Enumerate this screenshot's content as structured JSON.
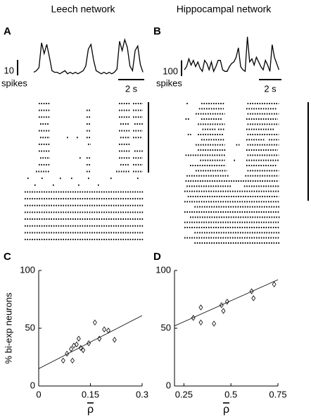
{
  "chart_data": [
    {
      "type": "line",
      "title": "Leech network",
      "panel": "A",
      "x": [
        0,
        0.2,
        0.4,
        0.6,
        0.8,
        1.0,
        1.2,
        1.4,
        1.6,
        1.8,
        2.0,
        2.2,
        2.4,
        2.6,
        2.8,
        3.0,
        3.2,
        3.4,
        3.6,
        3.8,
        4.0,
        4.2,
        4.4,
        4.6,
        4.8,
        5.0,
        5.2,
        5.4,
        5.6,
        5.8,
        6.0,
        6.2,
        6.4,
        6.6,
        6.8,
        7.0,
        7.2,
        7.4,
        7.6,
        7.8,
        8.0,
        8.2,
        8.4
      ],
      "values": [
        2,
        3,
        5,
        21,
        14,
        20,
        12,
        3,
        2,
        2,
        1,
        2,
        3,
        1,
        2,
        1,
        2,
        1,
        2,
        3,
        6,
        17,
        20,
        10,
        3,
        2,
        1,
        2,
        1,
        2,
        1,
        2,
        4,
        22,
        16,
        23,
        18,
        6,
        3,
        16,
        19,
        7,
        2
      ],
      "xlim": [
        0,
        8.5
      ],
      "ylim": [
        0,
        25
      ],
      "color": "#000000",
      "scalebar": {
        "y": 10,
        "y_unit": "spikes",
        "x": {
          "value": 2,
          "label": "2 s"
        }
      }
    },
    {
      "type": "line",
      "title": "Hippocampal network",
      "panel": "B",
      "x": [
        0,
        0.2,
        0.4,
        0.6,
        0.8,
        1.0,
        1.2,
        1.4,
        1.6,
        1.8,
        2.0,
        2.2,
        2.4,
        2.6,
        2.8,
        3.0,
        3.2,
        3.4,
        3.6,
        3.8,
        4.0,
        4.2,
        4.4,
        4.6,
        4.8,
        5.0,
        5.2,
        5.4,
        5.6,
        5.8,
        6.0,
        6.2,
        6.4,
        6.6,
        6.8,
        7.0,
        7.2,
        7.4,
        7.6,
        7.8,
        8.0,
        8.2,
        8.4
      ],
      "values": [
        40,
        60,
        110,
        70,
        100,
        60,
        90,
        50,
        30,
        100,
        80,
        40,
        90,
        30,
        60,
        100,
        100,
        40,
        30,
        30,
        60,
        80,
        90,
        120,
        180,
        60,
        40,
        30,
        250,
        90,
        110,
        70,
        120,
        90,
        60,
        40,
        100,
        70,
        30,
        200,
        120,
        80,
        40
      ],
      "xlim": [
        0,
        8.5
      ],
      "ylim": [
        0,
        260
      ],
      "color": "#000000",
      "scalebar": {
        "y": 100,
        "y_unit": "spikes",
        "x": {
          "value": 2,
          "label": "2 s"
        }
      }
    },
    {
      "type": "raster",
      "xlim": [
        0,
        8.5
      ],
      "color": "#000000",
      "rows": [
        [
          [
            1.0,
            1.8
          ],
          [
            6.7,
            7.5
          ],
          [
            7.7,
            8.4
          ]
        ],
        [
          [
            1.0,
            1.8
          ],
          [
            4.4,
            4.7
          ],
          [
            6.7,
            7.5
          ],
          [
            7.7,
            8.4
          ]
        ],
        [
          [
            1.0,
            1.8
          ],
          [
            4.4,
            4.7
          ],
          [
            6.7,
            7.5
          ],
          [
            7.7,
            8.4
          ]
        ],
        [
          [
            1.1,
            1.7
          ],
          [
            4.4,
            4.7
          ],
          [
            6.8,
            7.4
          ],
          [
            7.8,
            8.4
          ]
        ],
        [
          [
            1.0,
            1.8
          ],
          [
            4.4,
            4.7
          ],
          [
            6.7,
            7.5
          ],
          [
            7.7,
            8.4
          ]
        ],
        [
          [
            1.1,
            1.8
          ],
          [
            3.0,
            3.0
          ],
          [
            3.7,
            3.7
          ],
          [
            4.4,
            4.7
          ],
          [
            6.8,
            7.5
          ],
          [
            7.7,
            8.3
          ]
        ],
        [
          [
            1.0,
            1.8
          ],
          [
            4.5,
            4.7
          ],
          [
            6.7,
            7.5
          ]
        ],
        [
          [
            1.0,
            1.8
          ],
          [
            6.7,
            7.5
          ],
          [
            7.8,
            8.4
          ]
        ],
        [
          [
            1.1,
            1.8
          ],
          [
            3.9,
            3.9
          ],
          [
            4.4,
            4.7
          ],
          [
            6.7,
            7.5
          ],
          [
            7.7,
            8.4
          ]
        ],
        [
          [
            1.0,
            1.8
          ],
          [
            4.4,
            4.7
          ],
          [
            6.8,
            7.4
          ],
          [
            7.7,
            8.4
          ]
        ],
        [
          [
            0.8,
            1.8
          ],
          [
            4.4,
            4.7
          ],
          [
            6.5,
            7.5
          ],
          [
            7.7,
            8.4
          ]
        ],
        [
          [
            0.2,
            0.2
          ],
          [
            1.2,
            1.2
          ],
          [
            2.5,
            2.5
          ],
          [
            3.3,
            3.3
          ],
          [
            4.5,
            4.5
          ],
          [
            6.1,
            6.1
          ],
          [
            8.0,
            8.0
          ]
        ],
        [
          [
            0.7,
            0.7
          ],
          [
            2.0,
            2.0
          ],
          [
            3.8,
            3.8
          ],
          [
            5.2,
            5.2
          ]
        ],
        [
          [
            0,
            8.5
          ]
        ],
        [
          [
            0,
            8.5
          ]
        ],
        [
          [
            0,
            8.5
          ]
        ],
        [
          [
            0,
            8.5
          ]
        ],
        [
          [
            0,
            8.5
          ]
        ],
        [
          [
            0,
            8.5
          ]
        ],
        [
          [
            0,
            8.5
          ]
        ],
        [
          [
            0,
            8.5
          ]
        ]
      ]
    },
    {
      "type": "raster",
      "xlim": [
        0,
        8.5
      ],
      "color": "#000000",
      "rows": [
        [
          [
            0.2,
            0.4
          ],
          [
            1.5,
            3.6
          ],
          [
            5.6,
            8.4
          ]
        ],
        [
          [
            1.3,
            3.5
          ],
          [
            5.5,
            8.2
          ]
        ],
        [
          [
            1.0,
            3.6
          ],
          [
            5.6,
            8.4
          ]
        ],
        [
          [
            0.1,
            0.5
          ],
          [
            1.5,
            3.4
          ],
          [
            5.5,
            8.3
          ]
        ],
        [
          [
            1.2,
            3.6
          ],
          [
            5.6,
            8.4
          ]
        ],
        [
          [
            1.6,
            2.8
          ],
          [
            3.0,
            3.6
          ],
          [
            5.5,
            8.0
          ]
        ],
        [
          [
            0.3,
            0.6
          ],
          [
            1.2,
            3.5
          ],
          [
            5.6,
            8.4
          ]
        ],
        [
          [
            1.5,
            3.6
          ],
          [
            5.5,
            7.2
          ],
          [
            7.5,
            8.4
          ]
        ],
        [
          [
            1.0,
            3.6
          ],
          [
            4.6,
            4.9
          ],
          [
            5.6,
            8.4
          ]
        ],
        [
          [
            1.2,
            3.7
          ],
          [
            5.5,
            8.3
          ]
        ],
        [
          [
            0.1,
            3.6
          ],
          [
            5.6,
            8.4
          ]
        ],
        [
          [
            1.4,
            3.6
          ],
          [
            4.4,
            4.6
          ],
          [
            5.5,
            8.4
          ]
        ],
        [
          [
            0.5,
            3.7
          ],
          [
            5.5,
            8.2
          ]
        ],
        [
          [
            1.0,
            3.8
          ],
          [
            5.6,
            8.4
          ]
        ],
        [
          [
            0.2,
            4.0
          ],
          [
            5.4,
            8.4
          ]
        ],
        [
          [
            0.1,
            8.4
          ]
        ],
        [
          [
            0.2,
            4.2
          ],
          [
            5.3,
            8.5
          ]
        ],
        [
          [
            0,
            8.5
          ]
        ],
        [
          [
            0.3,
            8.4
          ]
        ],
        [
          [
            0,
            8.5
          ]
        ],
        [
          [
            0.9,
            8.5
          ]
        ],
        [
          [
            0,
            8.5
          ]
        ],
        [
          [
            0.5,
            8.5
          ]
        ],
        [
          [
            0,
            8.5
          ]
        ],
        [
          [
            0,
            8.5
          ]
        ],
        [
          [
            0.9,
            8.5
          ]
        ],
        [
          [
            0,
            8.5
          ]
        ],
        [
          [
            0.9,
            8.5
          ]
        ]
      ]
    },
    {
      "type": "scatter",
      "panel": "C",
      "y_label": "% bi-exp neurons",
      "x_label": "ρ",
      "x": [
        0.071,
        0.082,
        0.094,
        0.102,
        0.098,
        0.11,
        0.116,
        0.122,
        0.129,
        0.145,
        0.163,
        0.176,
        0.19,
        0.202,
        0.22
      ],
      "values": [
        22,
        28,
        32,
        35,
        22,
        36,
        41,
        33,
        31,
        37,
        55,
        41,
        49,
        48,
        40
      ],
      "fit": {
        "x": [
          0,
          0.3
        ],
        "y": [
          15,
          61
        ]
      },
      "xlim": [
        0,
        0.3
      ],
      "ylim": [
        0,
        100
      ],
      "xticks": [
        0,
        0.15,
        0.3
      ],
      "yticks": [
        0,
        50,
        100
      ],
      "color": "#000000"
    },
    {
      "type": "scatter",
      "panel": "D",
      "x_label": "ρ",
      "x": [
        0.3,
        0.34,
        0.34,
        0.41,
        0.45,
        0.46,
        0.48,
        0.61,
        0.62,
        0.73
      ],
      "values": [
        59,
        68,
        55,
        54,
        70,
        65,
        73,
        82,
        76,
        88
      ],
      "fit": {
        "x": [
          0.2,
          0.75
        ],
        "y": [
          52,
          92
        ]
      },
      "xlim": [
        0.2,
        0.75
      ],
      "ylim": [
        0,
        100
      ],
      "xticks": [
        0.25,
        0.5,
        0.75
      ],
      "yticks": [
        0,
        50,
        100
      ],
      "color": "#000000"
    }
  ]
}
